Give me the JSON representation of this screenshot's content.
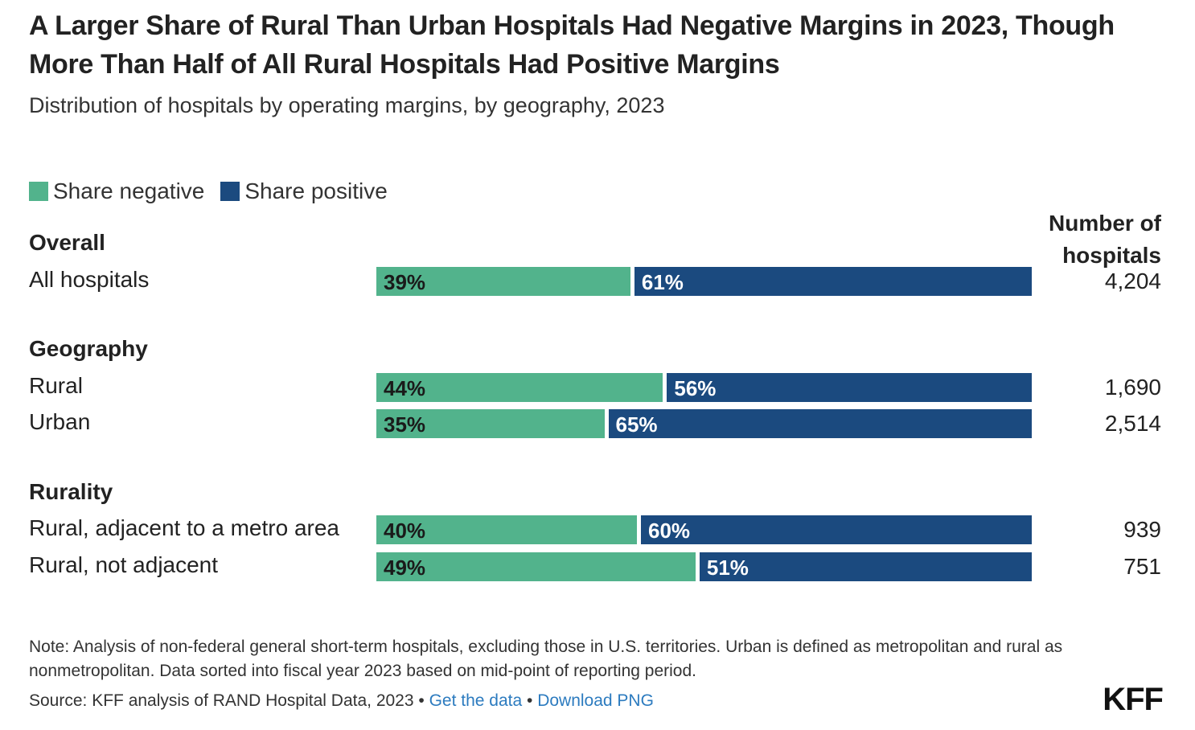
{
  "chart_data": {
    "type": "bar",
    "title": "A Larger Share of Rural Than Urban Hospitals Had Negative Margins in 2023, Though More Than Half of All Rural Hospitals Had Positive Margins",
    "subtitle": "Distribution of hospitals by operating margins, by geography, 2023",
    "stacked": true,
    "orientation": "horizontal",
    "legend": [
      {
        "label": "Share negative",
        "color": "#52b38c"
      },
      {
        "label": "Share positive",
        "color": "#1b4a7f"
      }
    ],
    "count_header": "Number of hospitals",
    "groups": [
      {
        "label": "Overall",
        "rows": [
          {
            "label": "All hospitals",
            "negative": 39,
            "positive": 61,
            "negative_label": "39%",
            "positive_label": "61%",
            "count": "4,204"
          }
        ]
      },
      {
        "label": "Geography",
        "rows": [
          {
            "label": "Rural",
            "negative": 44,
            "positive": 56,
            "negative_label": "44%",
            "positive_label": "56%",
            "count": "1,690"
          },
          {
            "label": "Urban",
            "negative": 35,
            "positive": 65,
            "negative_label": "35%",
            "positive_label": "65%",
            "count": "2,514"
          }
        ]
      },
      {
        "label": "Rurality",
        "rows": [
          {
            "label": "Rural, adjacent to a metro area",
            "negative": 40,
            "positive": 60,
            "negative_label": "40%",
            "positive_label": "60%",
            "count": "939"
          },
          {
            "label": "Rural, not adjacent",
            "negative": 49,
            "positive": 51,
            "negative_label": "49%",
            "positive_label": "51%",
            "count": "751"
          }
        ]
      }
    ],
    "xlim": [
      0,
      100
    ]
  },
  "footer": {
    "note": "Note: Analysis of non-federal general short-term hospitals, excluding those in U.S. territories. Urban is defined as metropolitan and rural as nonmetropolitan. Data sorted into fiscal year 2023 based on mid-point of reporting period.",
    "source": "Source: KFF analysis of RAND Hospital Data, 2023",
    "separator": " • ",
    "get_data": "Get the data",
    "download": "Download PNG",
    "logo": "KFF"
  },
  "colors": {
    "negative": "#52b38c",
    "positive": "#1b4a7f",
    "negative_text": "#1a1a1a",
    "positive_text": "#ffffff"
  }
}
